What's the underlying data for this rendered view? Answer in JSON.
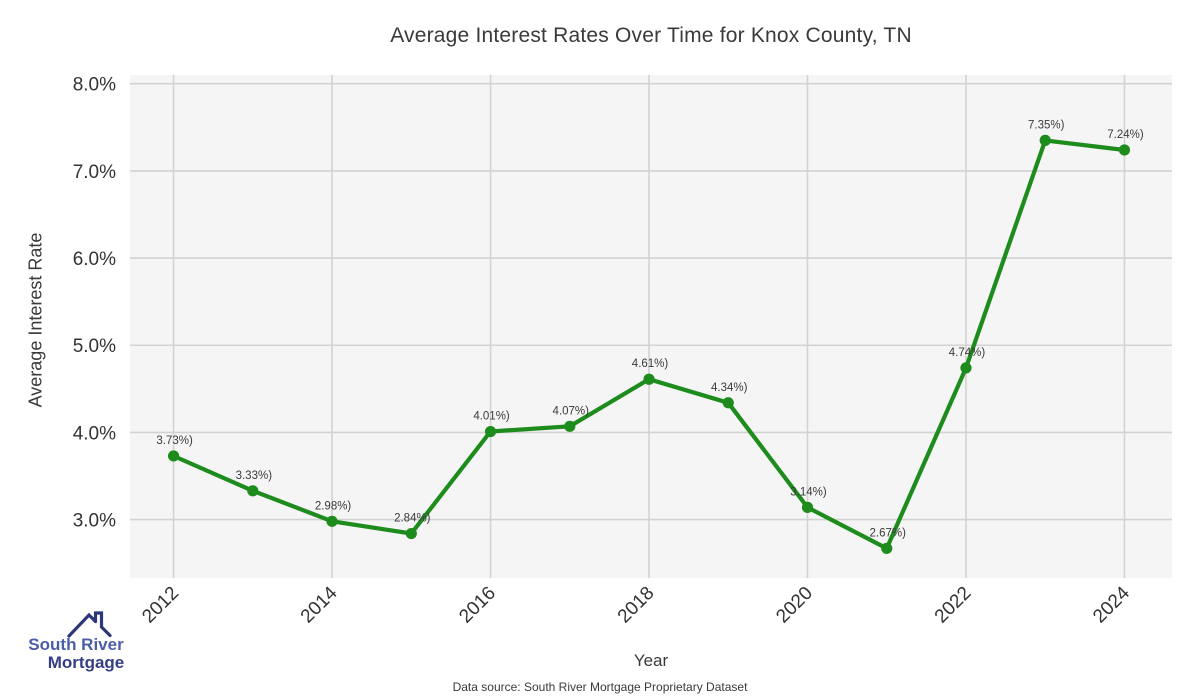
{
  "chart_data": {
    "type": "line",
    "title": "Average Interest Rates Over Time for Knox County, TN",
    "xlabel": "Year",
    "ylabel": "Average Interest Rate",
    "x": [
      2012,
      2013,
      2014,
      2015,
      2016,
      2017,
      2018,
      2019,
      2020,
      2021,
      2022,
      2023,
      2024
    ],
    "series": [
      {
        "name": "Average Interest Rate",
        "values": [
          3.73,
          3.33,
          2.98,
          2.84,
          4.01,
          4.07,
          4.61,
          4.34,
          3.14,
          2.67,
          4.74,
          7.35,
          7.24
        ]
      }
    ],
    "point_labels": [
      "3.73%)",
      "3.33%)",
      "2.98%)",
      "2.84%)",
      "4.01%)",
      "4.07%)",
      "4.61%)",
      "4.34%)",
      "3.14%)",
      "2.67%)",
      "4.74%)",
      "7.35%)",
      "7.24%)"
    ],
    "xticks": [
      2012,
      2014,
      2016,
      2018,
      2020,
      2022,
      2024
    ],
    "ytick_values": [
      3,
      4,
      5,
      6,
      7,
      8
    ],
    "ytick_labels": [
      "3.0%",
      "4.0%",
      "5.0%",
      "6.0%",
      "7.0%",
      "8.0%"
    ],
    "xlim": [
      2011.45,
      2024.6
    ],
    "ylim": [
      2.33,
      8.1
    ],
    "grid": true,
    "legend_position": "none",
    "marker": "circle"
  },
  "colors": {
    "line": "#1d8c1d",
    "plot_bg": "#f5f5f5",
    "grid": "#d2d2d2",
    "text": "#3a3a3a",
    "tick_text": "#333333",
    "logo_primary": "#4c5ea9",
    "logo_secondary": "#343e85",
    "logo_roof": "#2c3779"
  },
  "footer": {
    "source": "Data source: South River Mortgage Proprietary Dataset"
  },
  "logo": {
    "line1": "South River",
    "line2": "Mortgage"
  }
}
